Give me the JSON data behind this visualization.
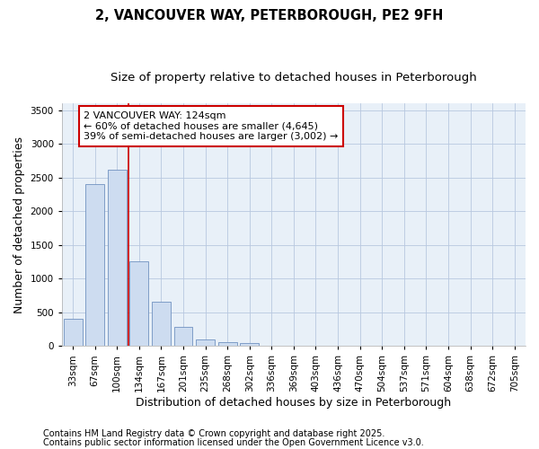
{
  "title_line1": "2, VANCOUVER WAY, PETERBOROUGH, PE2 9FH",
  "title_line2": "Size of property relative to detached houses in Peterborough",
  "xlabel": "Distribution of detached houses by size in Peterborough",
  "ylabel": "Number of detached properties",
  "categories": [
    "33sqm",
    "67sqm",
    "100sqm",
    "134sqm",
    "167sqm",
    "201sqm",
    "235sqm",
    "268sqm",
    "302sqm",
    "336sqm",
    "369sqm",
    "403sqm",
    "436sqm",
    "470sqm",
    "504sqm",
    "537sqm",
    "571sqm",
    "604sqm",
    "638sqm",
    "672sqm",
    "705sqm"
  ],
  "bar_values": [
    400,
    2400,
    2620,
    1250,
    650,
    280,
    100,
    60,
    50,
    0,
    0,
    0,
    0,
    0,
    0,
    0,
    0,
    0,
    0,
    0,
    0
  ],
  "bar_color": "#cddcf0",
  "bar_edgecolor": "#7092c0",
  "vline_color": "#cc0000",
  "vline_pos": 2.5,
  "ylim": [
    0,
    3600
  ],
  "yticks": [
    0,
    500,
    1000,
    1500,
    2000,
    2500,
    3000,
    3500
  ],
  "annotation_text": "2 VANCOUVER WAY: 124sqm\n← 60% of detached houses are smaller (4,645)\n39% of semi-detached houses are larger (3,002) →",
  "annotation_box_edgecolor": "#cc0000",
  "footer_line1": "Contains HM Land Registry data © Crown copyright and database right 2025.",
  "footer_line2": "Contains public sector information licensed under the Open Government Licence v3.0.",
  "bg_color": "#ffffff",
  "plot_bg_color": "#e8f0f8",
  "grid_color": "#b8c8e0",
  "title_fontsize": 10.5,
  "subtitle_fontsize": 9.5,
  "tick_fontsize": 7.5,
  "label_fontsize": 9,
  "footer_fontsize": 7,
  "annotation_fontsize": 8
}
